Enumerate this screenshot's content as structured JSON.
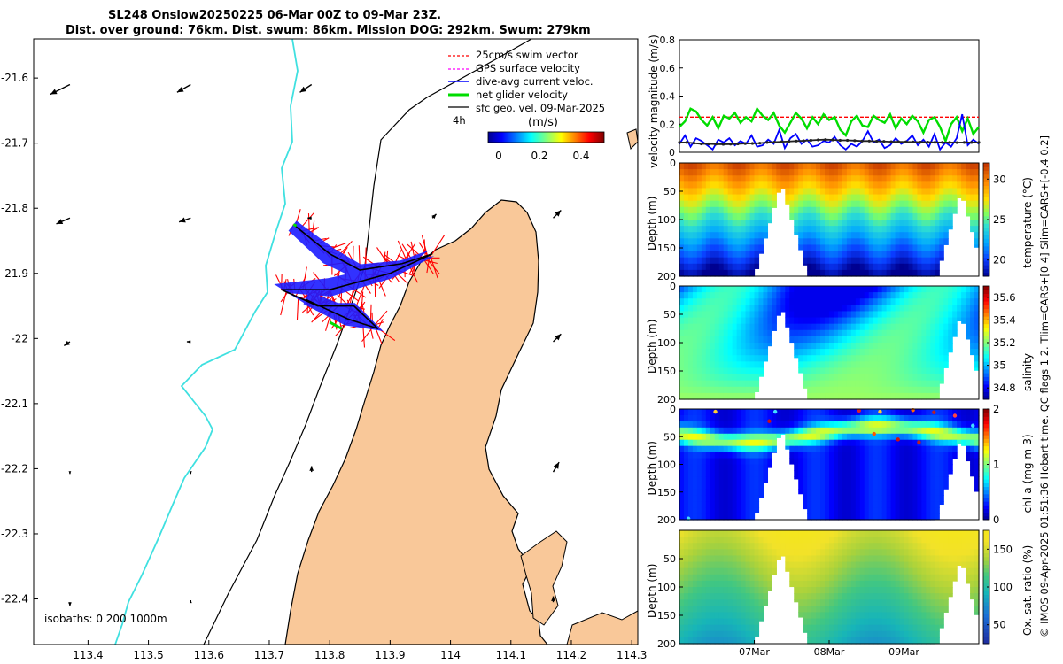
{
  "header": {
    "title_line1": "SL248 Onslow20250225 06-Mar 00Z to 09-Mar 23Z.",
    "title_line2": "Dist. over ground: 76km. Dist. swum: 86km. Mission DOG: 292km. Swum: 279km"
  },
  "side_note": "© IMOS 09-Apr-2025 01:51:36 Hobart time. QC flags 1  2. Tlim=CARS+[0 4] Slim=CARS+[-0.4 0.2]",
  "colors": {
    "land": "#f9c899",
    "coast": "#000000",
    "isobath_200": "#3fe0e0",
    "swim_vector": "#ff0000",
    "gps_velocity": "#ff00ff",
    "current_velocity": "#0000ff",
    "net_velocity": "#00dd00",
    "geo_velocity": "#000000"
  },
  "map": {
    "legend": {
      "items": [
        "25cm/s swim vector",
        "GPS surface velocity",
        "dive-avg current veloc.",
        "net glider velocity",
        "sfc geo. vel. 09-Mar-2025"
      ],
      "scale_label": "4h",
      "colorbar_title": "(m/s)",
      "colorbar_ticks": [
        "0",
        "0.2",
        "0.4"
      ]
    },
    "isobaths_label": "isobaths: 0   200  1000m"
  },
  "chart_data": [
    {
      "type": "map",
      "name": "glider-track-map",
      "x_ticks": [
        "113.4",
        "113.5",
        "113.6",
        "113.7",
        "113.8",
        "113.9",
        "114",
        "114.1",
        "114.2",
        "114.3"
      ],
      "y_ticks": [
        "-21.6",
        "-21.7",
        "-21.8",
        "-21.9",
        "-22",
        "-22.1",
        "-22.2",
        "-22.3",
        "-22.4"
      ],
      "xlim": [
        113.31,
        114.31
      ],
      "ylim": [
        -22.47,
        -21.54
      ],
      "glider_track": [
        {
          "lon": 113.74,
          "lat": -21.825
        },
        {
          "lon": 113.8,
          "lat": -21.87
        },
        {
          "lon": 113.85,
          "lat": -21.895
        },
        {
          "lon": 113.92,
          "lat": -21.885
        },
        {
          "lon": 113.97,
          "lat": -21.87
        },
        {
          "lon": 113.9,
          "lat": -21.9
        },
        {
          "lon": 113.8,
          "lat": -21.925
        },
        {
          "lon": 113.72,
          "lat": -21.925
        },
        {
          "lon": 113.78,
          "lat": -21.95
        },
        {
          "lon": 113.84,
          "lat": -21.95
        },
        {
          "lon": 113.88,
          "lat": -21.985
        },
        {
          "lon": 113.83,
          "lat": -21.97
        },
        {
          "lon": 113.76,
          "lat": -21.94
        }
      ],
      "geostrophic_vectors": [
        {
          "lon": 113.37,
          "lat": -21.61,
          "u": -0.1,
          "v": -0.05
        },
        {
          "lon": 113.57,
          "lat": -21.61,
          "u": -0.07,
          "v": -0.04
        },
        {
          "lon": 113.77,
          "lat": -21.61,
          "u": -0.06,
          "v": -0.04
        },
        {
          "lon": 113.37,
          "lat": -21.815,
          "u": -0.07,
          "v": -0.03
        },
        {
          "lon": 113.57,
          "lat": -21.815,
          "u": -0.06,
          "v": -0.02
        },
        {
          "lon": 113.77,
          "lat": -21.815,
          "u": -0.02,
          "v": 0
        },
        {
          "lon": 113.97,
          "lat": -21.815,
          "u": 0.02,
          "v": 0.02
        },
        {
          "lon": 114.17,
          "lat": -21.815,
          "u": 0.04,
          "v": 0.04
        },
        {
          "lon": 113.37,
          "lat": -22.005,
          "u": -0.03,
          "v": -0.02
        },
        {
          "lon": 113.57,
          "lat": -22.005,
          "u": -0.02,
          "v": 0
        },
        {
          "lon": 114.17,
          "lat": -22.005,
          "u": 0.04,
          "v": 0.04
        },
        {
          "lon": 113.37,
          "lat": -22.205,
          "u": 0,
          "v": -0.01
        },
        {
          "lon": 113.57,
          "lat": -22.205,
          "u": 0,
          "v": -0.01
        },
        {
          "lon": 113.77,
          "lat": -22.205,
          "u": 0,
          "v": 0.03
        },
        {
          "lon": 114.17,
          "lat": -22.205,
          "u": 0.03,
          "v": 0.05
        },
        {
          "lon": 113.37,
          "lat": -22.405,
          "u": 0,
          "v": -0.02
        },
        {
          "lon": 113.57,
          "lat": -22.405,
          "u": 0,
          "v": 0.01
        },
        {
          "lon": 114.17,
          "lat": -22.405,
          "u": 0,
          "v": 0.03
        }
      ]
    },
    {
      "type": "line",
      "name": "velocity-magnitude",
      "ylabel": "velocity magnitude (m/s)",
      "y_ticks": [
        "0",
        "0.2",
        "0.4",
        "0.6",
        "0.8"
      ],
      "ylim": [
        0,
        0.8
      ],
      "xlim": [
        0,
        4
      ],
      "series": [
        {
          "name": "swim",
          "color": "#ff0000",
          "style": "dashed",
          "values": [
            0.25,
            0.25
          ]
        },
        {
          "name": "net glider velocity",
          "color": "#00dd00",
          "values": [
            0.18,
            0.22,
            0.31,
            0.29,
            0.23,
            0.19,
            0.25,
            0.17,
            0.26,
            0.24,
            0.28,
            0.21,
            0.25,
            0.22,
            0.31,
            0.26,
            0.23,
            0.28,
            0.19,
            0.14,
            0.21,
            0.28,
            0.24,
            0.17,
            0.25,
            0.2,
            0.27,
            0.23,
            0.25,
            0.16,
            0.12,
            0.22,
            0.26,
            0.19,
            0.18,
            0.26,
            0.23,
            0.21,
            0.27,
            0.17,
            0.24,
            0.2,
            0.26,
            0.22,
            0.14,
            0.23,
            0.25,
            0.18,
            0.08,
            0.2,
            0.25,
            0.15,
            0.24,
            0.13,
            0.18
          ]
        },
        {
          "name": "dive-avg current",
          "color": "#0000ff",
          "values": [
            0.06,
            0.12,
            0.04,
            0.1,
            0.08,
            0.05,
            0.02,
            0.09,
            0.07,
            0.1,
            0.05,
            0.08,
            0.06,
            0.12,
            0.04,
            0.05,
            0.09,
            0.06,
            0.16,
            0.03,
            0.1,
            0.13,
            0.06,
            0.09,
            0.04,
            0.05,
            0.08,
            0.07,
            0.11,
            0.05,
            0.02,
            0.06,
            0.04,
            0.08,
            0.15,
            0.07,
            0.09,
            0.03,
            0.05,
            0.1,
            0.06,
            0.08,
            0.12,
            0.05,
            0.09,
            0.04,
            0.13,
            0.02,
            0.07,
            0.04,
            0.1,
            0.27,
            0.05,
            0.09,
            0.06
          ]
        },
        {
          "name": "sfc geo. vel.",
          "color": "#222222",
          "values": [
            0.07,
            0.07,
            0.065,
            0.06,
            0.06,
            0.058,
            0.057,
            0.058,
            0.06,
            0.062,
            0.063,
            0.065,
            0.07,
            0.072,
            0.075,
            0.077,
            0.08,
            0.082,
            0.085,
            0.088,
            0.09,
            0.088,
            0.085,
            0.085,
            0.083,
            0.08,
            0.08,
            0.078,
            0.077,
            0.075,
            0.075,
            0.074,
            0.073,
            0.072,
            0.072,
            0.071,
            0.07,
            0.07,
            0.069,
            0.07,
            0.07,
            0.07
          ]
        }
      ]
    },
    {
      "type": "heatmap",
      "name": "temperature-section",
      "ylabel": "Depth (m)",
      "y_ticks": [
        "0",
        "50",
        "100",
        "150",
        "200"
      ],
      "colorbar_label": "temperature (°C)",
      "colorbar_ticks": [
        "20",
        "25",
        "30"
      ],
      "clim": [
        18,
        32
      ]
    },
    {
      "type": "heatmap",
      "name": "salinity-section",
      "ylabel": "Depth (m)",
      "y_ticks": [
        "0",
        "50",
        "100",
        "150",
        "200"
      ],
      "colorbar_label": "salinity",
      "colorbar_ticks": [
        "34.8",
        "35",
        "35.2",
        "35.4",
        "35.6"
      ],
      "clim": [
        34.7,
        35.7
      ]
    },
    {
      "type": "heatmap",
      "name": "chla-section",
      "ylabel": "Depth (m)",
      "y_ticks": [
        "0",
        "50",
        "100",
        "150",
        "200"
      ],
      "colorbar_label": "chl-a (mg m-3)",
      "colorbar_ticks": [
        "0",
        "1",
        "2"
      ],
      "clim": [
        0,
        2
      ]
    },
    {
      "type": "heatmap",
      "name": "oxygen-section",
      "ylabel": "Depth (m)",
      "y_ticks": [
        "50",
        "100",
        "150",
        "200"
      ],
      "colorbar_label": "Ox. sat. ratio (%)",
      "colorbar_ticks": [
        "50",
        "100",
        "150"
      ],
      "clim": [
        25,
        175
      ],
      "x_ticks": [
        "07Mar",
        "08Mar",
        "09Mar"
      ],
      "xlim": [
        0,
        4
      ]
    }
  ]
}
